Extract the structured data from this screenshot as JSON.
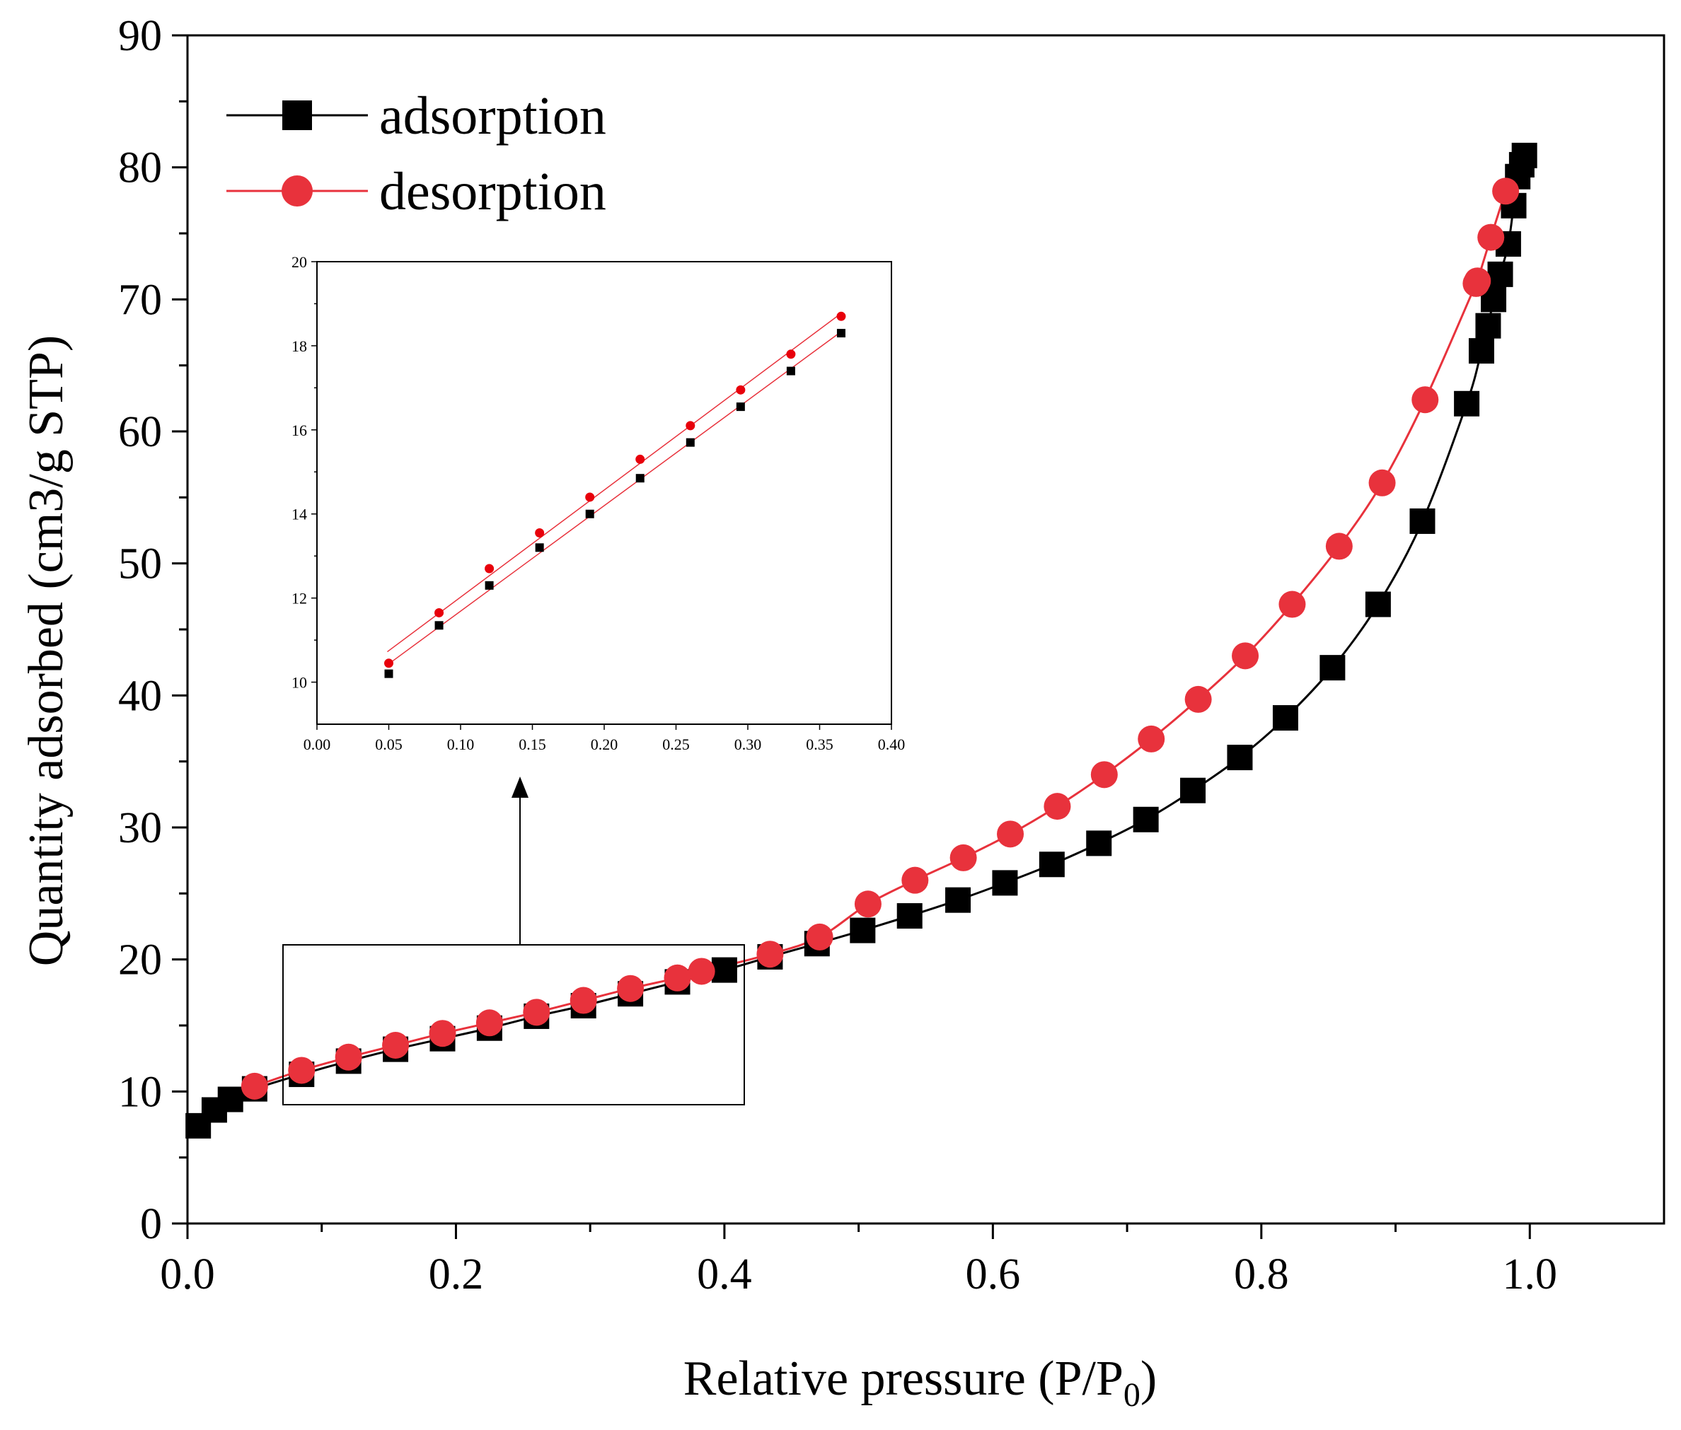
{
  "chart_data": {
    "type": "line",
    "title": "",
    "xlabel": "Relative pressure (P/P",
    "xlabel_sub": "0",
    "xlabel_close": ")",
    "ylabel": "Quantity adsorbed (cm3/g STP)",
    "xlim": [
      0,
      1.1
    ],
    "ylim": [
      0,
      90
    ],
    "xticks": [
      0.0,
      0.2,
      0.4,
      0.6,
      0.8,
      1.0
    ],
    "xtick_labels": [
      "0.0",
      "0.2",
      "0.4",
      "0.6",
      "0.8",
      "1.0"
    ],
    "yticks": [
      0,
      10,
      20,
      30,
      40,
      50,
      60,
      70,
      80,
      90
    ],
    "ytick_labels": [
      "0",
      "10",
      "20",
      "30",
      "40",
      "50",
      "60",
      "70",
      "80",
      "90"
    ],
    "legend_position": "top-left",
    "series": [
      {
        "name": "adsorption",
        "marker": "square",
        "color": "#000000",
        "x": [
          0.008,
          0.02,
          0.032,
          0.05,
          0.085,
          0.12,
          0.155,
          0.19,
          0.225,
          0.26,
          0.295,
          0.33,
          0.365,
          0.4,
          0.434,
          0.469,
          0.503,
          0.538,
          0.574,
          0.609,
          0.644,
          0.679,
          0.714,
          0.749,
          0.784,
          0.818,
          0.853,
          0.887,
          0.92,
          0.953,
          0.964,
          0.969,
          0.973,
          0.978,
          0.984,
          0.988,
          0.991,
          0.994,
          0.996
        ],
        "y": [
          7.4,
          8.6,
          9.4,
          10.2,
          11.3,
          12.3,
          13.2,
          14.0,
          14.8,
          15.7,
          16.5,
          17.4,
          18.3,
          19.2,
          20.2,
          21.2,
          22.2,
          23.3,
          24.5,
          25.8,
          27.2,
          28.8,
          30.6,
          32.8,
          35.3,
          38.3,
          42.1,
          46.9,
          53.2,
          62.1,
          66.1,
          68.0,
          70.0,
          71.9,
          74.2,
          77.1,
          79.3,
          80.2,
          80.9
        ]
      },
      {
        "name": "desorption",
        "marker": "circle",
        "color": "#e8323c",
        "x": [
          0.05,
          0.085,
          0.12,
          0.155,
          0.19,
          0.225,
          0.26,
          0.295,
          0.33,
          0.365,
          0.383,
          0.434,
          0.471,
          0.507,
          0.542,
          0.578,
          0.613,
          0.648,
          0.683,
          0.718,
          0.753,
          0.788,
          0.823,
          0.858,
          0.89,
          0.922,
          0.96,
          0.961,
          0.971,
          0.982
        ],
        "y": [
          10.4,
          11.6,
          12.6,
          13.5,
          14.4,
          15.2,
          16.0,
          16.9,
          17.8,
          18.6,
          19.1,
          20.4,
          21.7,
          24.2,
          26.0,
          27.7,
          29.5,
          31.6,
          34.0,
          36.7,
          39.7,
          43.0,
          46.9,
          51.3,
          56.1,
          62.4,
          71.2,
          71.4,
          74.7,
          78.2
        ]
      }
    ],
    "inset": {
      "xlim": [
        0,
        0.4
      ],
      "ylim": [
        9,
        20
      ],
      "xticks": [
        0.0,
        0.05,
        0.1,
        0.15,
        0.2,
        0.25,
        0.3,
        0.35,
        0.4
      ],
      "xtick_labels": [
        "0.00",
        "0.05",
        "0.10",
        "0.15",
        "0.20",
        "0.25",
        "0.30",
        "0.35",
        "0.40"
      ],
      "yticks": [
        10,
        12,
        14,
        16,
        18,
        20
      ],
      "ytick_labels": [
        "10",
        "12",
        "14",
        "16",
        "18",
        "20"
      ],
      "series": [
        {
          "name": "adsorption",
          "marker": "square",
          "color": "#000000",
          "line_color": "#e8323c",
          "x": [
            0.05,
            0.085,
            0.12,
            0.155,
            0.19,
            0.225,
            0.26,
            0.295,
            0.33,
            0.365
          ],
          "y": [
            10.2,
            11.35,
            12.3,
            13.2,
            14.0,
            14.85,
            15.7,
            16.55,
            17.4,
            18.3
          ]
        },
        {
          "name": "desorption",
          "marker": "circle",
          "color": "#e8000b",
          "line_color": "#e8323c",
          "x": [
            0.05,
            0.085,
            0.12,
            0.155,
            0.19,
            0.225,
            0.26,
            0.295,
            0.33,
            0.365
          ],
          "y": [
            10.45,
            11.65,
            12.7,
            13.55,
            14.4,
            15.3,
            16.1,
            16.95,
            17.8,
            18.7
          ]
        }
      ]
    }
  }
}
